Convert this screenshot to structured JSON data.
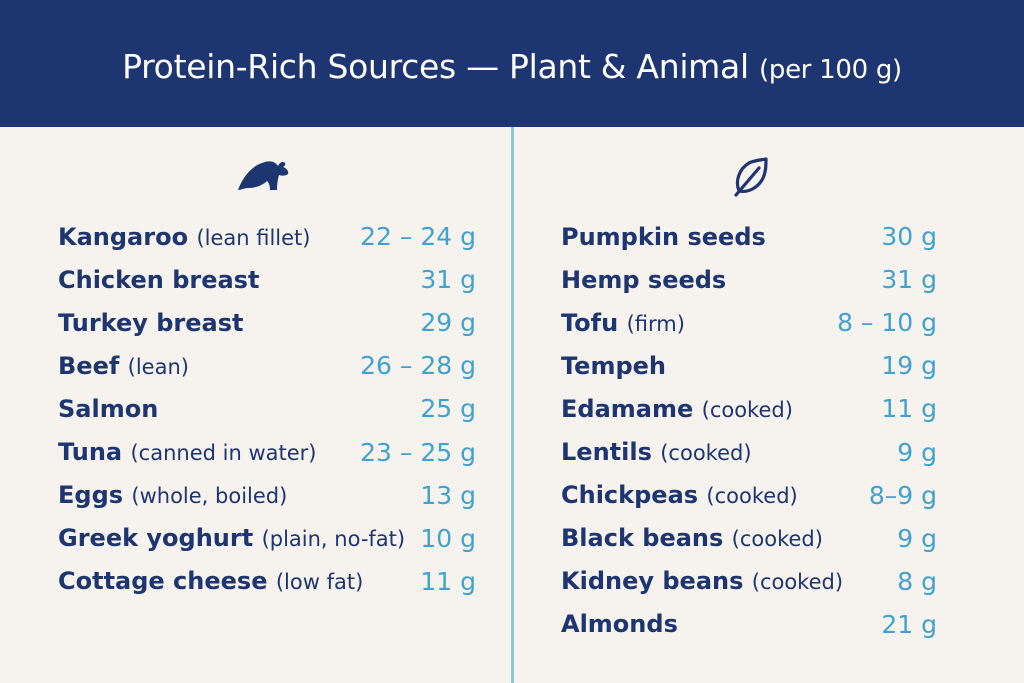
{
  "header": {
    "title": "Protein-Rich Sources — Plant & Animal",
    "subtitle": "(per 100 g)"
  },
  "colors": {
    "header_bg": "#1d3570",
    "name_text": "#1d3570",
    "value_text": "#3fa2cf",
    "divider": "#8fc6e0",
    "background": "#f6f2ed"
  },
  "animal": {
    "icon": "kangaroo-icon",
    "items": [
      {
        "name": "Kangaroo",
        "note": "(lean fillet)",
        "value": "22 – 24 g"
      },
      {
        "name": "Chicken breast",
        "note": "",
        "value": "31 g"
      },
      {
        "name": "Turkey breast",
        "note": "",
        "value": "29 g"
      },
      {
        "name": "Beef",
        "note": "(lean)",
        "value": "26 – 28 g"
      },
      {
        "name": "Salmon",
        "note": "",
        "value": "25 g"
      },
      {
        "name": "Tuna",
        "note": "(canned in water)",
        "value": "23 – 25 g"
      },
      {
        "name": "Eggs",
        "note": "(whole, boiled)",
        "value": "13 g"
      },
      {
        "name": "Greek yoghurt",
        "note": "(plain, no-fat)",
        "value": "10 g"
      },
      {
        "name": "Cottage cheese",
        "note": "(low fat)",
        "value": "11 g"
      }
    ]
  },
  "plant": {
    "icon": "leaf-icon",
    "items": [
      {
        "name": "Pumpkin seeds",
        "note": "",
        "value": "30 g"
      },
      {
        "name": "Hemp seeds",
        "note": "",
        "value": "31 g"
      },
      {
        "name": "Tofu",
        "note": "(firm)",
        "value": "8 – 10 g"
      },
      {
        "name": "Tempeh",
        "note": "",
        "value": "19 g"
      },
      {
        "name": "Edamame",
        "note": "(cooked)",
        "value": "11 g"
      },
      {
        "name": "Lentils",
        "note": "(cooked)",
        "value": "9 g"
      },
      {
        "name": "Chickpeas",
        "note": "(cooked)",
        "value": "8–9 g"
      },
      {
        "name": "Black beans",
        "note": "(cooked)",
        "value": "9 g"
      },
      {
        "name": "Kidney beans",
        "note": "(cooked)",
        "value": "8 g"
      },
      {
        "name": "Almonds",
        "note": "",
        "value": "21 g"
      }
    ]
  }
}
